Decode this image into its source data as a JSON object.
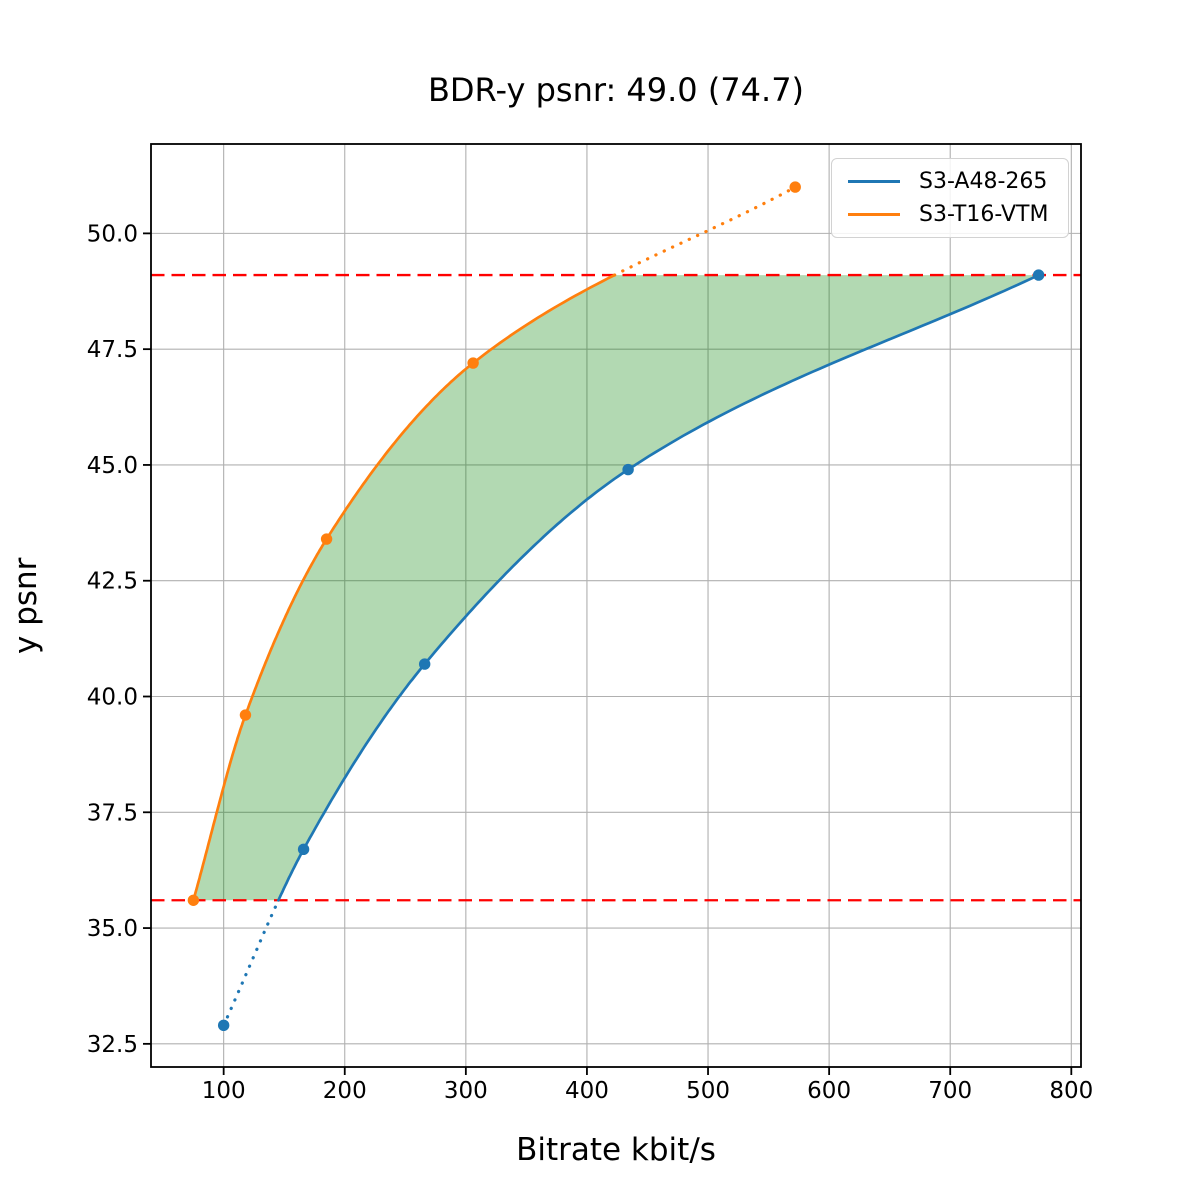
{
  "chart_data": {
    "type": "line",
    "title": "BDR-y psnr: 49.0 (74.7)",
    "xlabel": "Bitrate kbit/s",
    "ylabel": "y psnr",
    "xlim": [
      40,
      808
    ],
    "ylim": [
      32.0,
      51.93
    ],
    "xticks": [
      100,
      200,
      300,
      400,
      500,
      600,
      700,
      800
    ],
    "xtick_labels": [
      "100",
      "200",
      "300",
      "400",
      "500",
      "600",
      "700",
      "800"
    ],
    "yticks": [
      32.5,
      35.0,
      37.5,
      40.0,
      42.5,
      45.0,
      47.5,
      50.0
    ],
    "ytick_labels": [
      "32.5",
      "35.0",
      "37.5",
      "40.0",
      "42.5",
      "45.0",
      "47.5",
      "50.0"
    ],
    "grid": true,
    "grid_color": "#b0b0b0",
    "legend_position": "upper right",
    "series": [
      {
        "name": "S3-A48-265",
        "color": "#1f77b4",
        "points": [
          [
            100,
            32.9
          ],
          [
            166,
            36.7
          ],
          [
            266,
            40.7
          ],
          [
            434,
            44.9
          ],
          [
            773,
            49.1
          ]
        ]
      },
      {
        "name": "S3-T16-VTM",
        "color": "#ff7f0e",
        "points": [
          [
            75,
            35.6
          ],
          [
            118,
            39.6
          ],
          [
            185,
            43.4
          ],
          [
            306,
            47.2
          ],
          [
            572,
            51.0
          ]
        ]
      }
    ],
    "overlap_interval": {
      "psnr_low": 35.6,
      "psnr_high": 49.1,
      "line_color": "#ff0000",
      "line_style": "dashed",
      "note": "curves solid inside interval, dotted outside"
    },
    "fill_between": {
      "color": "rgba(0,128,0,0.30)",
      "between": [
        "S3-T16-VTM",
        "S3-A48-265"
      ]
    }
  }
}
